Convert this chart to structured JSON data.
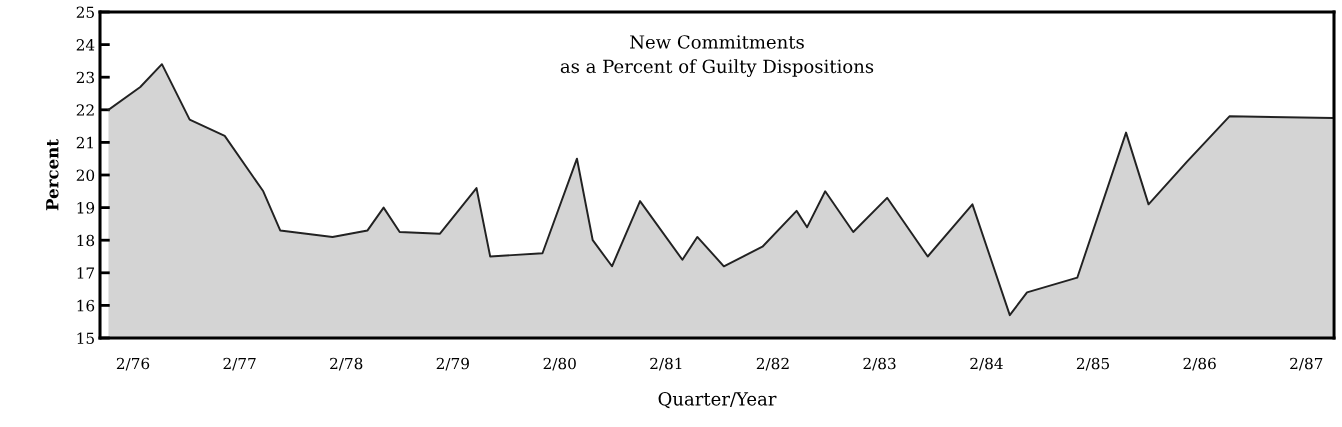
{
  "chart_data": {
    "type": "area",
    "title": "New Commitments\nas a Percent of Guilty Dispositions",
    "xlabel": "Quarter/Year",
    "ylabel": "Percent",
    "x": [
      "1976-01-08",
      "1976-04-26",
      "1976-07-09",
      "1976-10-12",
      "1977-02-09",
      "1977-06-21",
      "1977-08-18",
      "1978-02-13",
      "1978-06-13",
      "1978-08-07",
      "1978-10-01",
      "1979-02-16",
      "1979-06-21",
      "1979-08-07",
      "1980-02-02",
      "1980-05-30",
      "1980-07-23",
      "1980-09-27",
      "1981-01-01",
      "1981-05-26",
      "1981-07-16",
      "1981-10-15",
      "1982-02-24",
      "1982-06-21",
      "1982-07-27",
      "1982-09-27",
      "1983-01-01",
      "1983-04-27",
      "1983-09-13",
      "1984-02-13",
      "1984-06-20",
      "1984-08-18",
      "1985-02-06",
      "1985-07-23",
      "1985-10-08",
      "1986-02-16",
      "1986-07-12",
      "1987-06-28"
    ],
    "series": [
      {
        "color": "#d4d4d4",
        "values": [
          22.0,
          22.7,
          23.4,
          21.7,
          21.2,
          19.5,
          18.3,
          18.1,
          18.3,
          19.0,
          18.25,
          18.2,
          19.6,
          17.5,
          17.6,
          20.5,
          18.0,
          17.2,
          19.2,
          17.4,
          18.1,
          17.2,
          17.8,
          18.9,
          18.4,
          19.5,
          18.25,
          19.3,
          17.5,
          19.1,
          15.7,
          16.4,
          16.85,
          21.3,
          19.1,
          20.4,
          21.8,
          21.75
        ]
      }
    ],
    "xlim": [
      "1975-12-10",
      "1987-07-05"
    ],
    "ylim": [
      15,
      25
    ],
    "xticks": [
      {
        "value": "1976-04-01",
        "label": "2/76"
      },
      {
        "value": "1977-04-01",
        "label": "2/77"
      },
      {
        "value": "1978-04-01",
        "label": "2/78"
      },
      {
        "value": "1979-04-01",
        "label": "2/79"
      },
      {
        "value": "1980-04-01",
        "label": "2/80"
      },
      {
        "value": "1981-04-01",
        "label": "2/81"
      },
      {
        "value": "1982-04-01",
        "label": "2/82"
      },
      {
        "value": "1983-04-01",
        "label": "2/83"
      },
      {
        "value": "1984-04-01",
        "label": "2/84"
      },
      {
        "value": "1985-04-01",
        "label": "2/85"
      },
      {
        "value": "1986-04-01",
        "label": "2/86"
      },
      {
        "value": "1987-04-01",
        "label": "2/87"
      }
    ],
    "yticks": [
      15,
      16,
      17,
      18,
      19,
      20,
      21,
      22,
      23,
      24,
      25
    ],
    "grid": false,
    "legend": false
  }
}
